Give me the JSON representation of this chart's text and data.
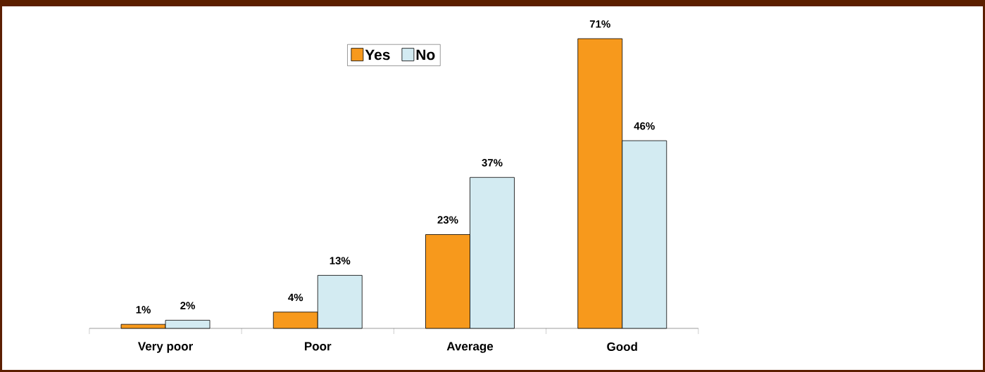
{
  "chart_data": {
    "type": "bar",
    "categories": [
      "Very poor",
      "Poor",
      "Average",
      "Good"
    ],
    "series": [
      {
        "name": "Yes",
        "color": "#f7991c",
        "values": [
          1,
          4,
          23,
          71
        ],
        "value_labels": [
          "1%",
          "4%",
          "23%",
          "71%"
        ]
      },
      {
        "name": "No",
        "color": "#d3ebf2",
        "values": [
          2,
          13,
          37,
          46
        ],
        "value_labels": [
          "2%",
          "13%",
          "37%",
          "46%"
        ]
      }
    ],
    "legend": "top"
  }
}
